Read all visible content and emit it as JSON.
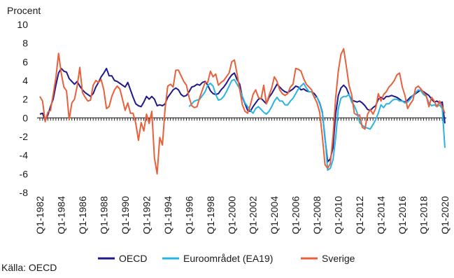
{
  "chart_data": {
    "type": "line",
    "y_label": "Procent",
    "source": "Källa: OECD",
    "categories": [
      "Q1-1982",
      null,
      null,
      null,
      null,
      null,
      null,
      null,
      "Q1-1984",
      null,
      null,
      null,
      null,
      null,
      null,
      null,
      "Q1-1986",
      null,
      null,
      null,
      null,
      null,
      null,
      null,
      "Q1-1988",
      null,
      null,
      null,
      null,
      null,
      null,
      null,
      "Q1-1990",
      null,
      null,
      null,
      null,
      null,
      null,
      null,
      "Q1-1992",
      null,
      null,
      null,
      null,
      null,
      null,
      null,
      "Q1-1994",
      null,
      null,
      null,
      null,
      null,
      null,
      null,
      "Q1-1996",
      null,
      null,
      null,
      null,
      null,
      null,
      null,
      "Q1-1998",
      null,
      null,
      null,
      null,
      null,
      null,
      null,
      "Q1-2000",
      null,
      null,
      null,
      null,
      null,
      null,
      null,
      "Q1-2002",
      null,
      null,
      null,
      null,
      null,
      null,
      null,
      "Q1-2004",
      null,
      null,
      null,
      null,
      null,
      null,
      null,
      "Q1-2006",
      null,
      null,
      null,
      null,
      null,
      null,
      null,
      "Q1-2008",
      null,
      null,
      null,
      null,
      null,
      null,
      null,
      "Q1-2010",
      null,
      null,
      null,
      null,
      null,
      null,
      null,
      "Q1-2012",
      null,
      null,
      null,
      null,
      null,
      null,
      null,
      "Q1-2014",
      null,
      null,
      null,
      null,
      null,
      null,
      null,
      "Q1-2016",
      null,
      null,
      null,
      null,
      null,
      null,
      null,
      "Q1-2018",
      null,
      null,
      null,
      null,
      null,
      null,
      null,
      "Q1-2020"
    ],
    "series": [
      {
        "name": "OECD",
        "color": "#1f1a8c",
        "values": [
          0.4,
          0.5,
          -0.3,
          0.3,
          1.2,
          2.0,
          3.5,
          4.8,
          5.3,
          5.0,
          4.9,
          4.2,
          3.9,
          3.6,
          3.9,
          3.4,
          3.0,
          2.7,
          2.5,
          2.3,
          2.6,
          3.3,
          3.8,
          4.4,
          4.8,
          5.3,
          4.5,
          4.5,
          4.0,
          3.9,
          3.7,
          3.5,
          3.3,
          3.8,
          3.0,
          2.2,
          1.5,
          1.3,
          1.2,
          1.7,
          2.3,
          2.0,
          2.3,
          2.0,
          1.3,
          1.4,
          1.3,
          1.5,
          2.2,
          2.6,
          3.0,
          3.2,
          3.0,
          2.5,
          2.3,
          2.4,
          2.8,
          3.3,
          3.4,
          3.6,
          3.5,
          3.8,
          3.9,
          3.5,
          2.9,
          2.6,
          2.5,
          2.6,
          3.0,
          3.3,
          3.7,
          4.2,
          4.6,
          4.8,
          4.1,
          3.6,
          2.2,
          1.5,
          0.8,
          0.7,
          1.2,
          1.6,
          2.0,
          2.1,
          1.8,
          1.5,
          2.2,
          2.6,
          3.1,
          3.6,
          3.3,
          3.0,
          2.8,
          2.7,
          2.9,
          3.1,
          3.4,
          3.3,
          3.0,
          3.1,
          2.9,
          2.8,
          2.8,
          2.6,
          2.2,
          1.6,
          0.6,
          -2.2,
          -4.7,
          -4.4,
          -3.2,
          0.4,
          2.4,
          3.2,
          3.5,
          3.2,
          2.5,
          1.9,
          1.8,
          1.7,
          1.8,
          1.6,
          1.3,
          0.9,
          0.8,
          1.1,
          1.3,
          2.0,
          2.2,
          2.0,
          2.3,
          2.3,
          2.4,
          2.3,
          2.2,
          2.0,
          1.8,
          1.7,
          1.9,
          2.2,
          2.4,
          2.6,
          2.8,
          3.0,
          2.8,
          2.6,
          2.4,
          2.0,
          1.7,
          1.8,
          1.6,
          1.7,
          -0.6
        ]
      },
      {
        "name": "Euroområdet (EA19)",
        "color": "#2ab4e2",
        "values": [
          null,
          null,
          null,
          null,
          null,
          null,
          null,
          null,
          null,
          null,
          null,
          null,
          null,
          null,
          null,
          null,
          null,
          null,
          null,
          null,
          null,
          null,
          null,
          null,
          null,
          null,
          null,
          null,
          null,
          null,
          null,
          null,
          null,
          null,
          null,
          null,
          null,
          null,
          null,
          null,
          null,
          null,
          null,
          null,
          null,
          null,
          null,
          null,
          null,
          null,
          null,
          null,
          null,
          null,
          null,
          null,
          1.2,
          1.5,
          1.8,
          1.9,
          2.0,
          2.4,
          2.8,
          3.5,
          3.7,
          3.4,
          2.5,
          1.9,
          2.0,
          2.3,
          2.8,
          3.4,
          4.0,
          4.1,
          3.6,
          3.1,
          2.3,
          1.6,
          1.2,
          0.8,
          0.5,
          1.0,
          1.2,
          0.9,
          0.6,
          0.4,
          0.7,
          1.2,
          1.8,
          2.2,
          1.8,
          1.8,
          1.4,
          1.4,
          1.8,
          2.1,
          2.6,
          3.1,
          3.4,
          3.7,
          3.2,
          2.8,
          2.8,
          2.2,
          2.2,
          1.5,
          0.5,
          -2.0,
          -5.6,
          -5.4,
          -4.5,
          -2.2,
          1.0,
          2.1,
          2.3,
          2.3,
          2.5,
          1.7,
          1.3,
          0.6,
          -0.5,
          -0.8,
          -1.0,
          -1.1,
          -1.2,
          -0.7,
          -0.2,
          0.5,
          1.4,
          1.1,
          1.5,
          1.5,
          1.8,
          2.0,
          2.0,
          1.8,
          1.8,
          1.6,
          1.7,
          2.0,
          2.4,
          2.7,
          3.0,
          2.9,
          2.5,
          2.3,
          1.6,
          1.3,
          1.4,
          1.2,
          1.4,
          1.0,
          -3.2
        ]
      },
      {
        "name": "Sverige",
        "color": "#e8603c",
        "values": [
          2.3,
          1.8,
          -0.4,
          0.6,
          0.8,
          2.5,
          4.3,
          6.9,
          4.8,
          3.3,
          2.9,
          -0.2,
          1.6,
          2.0,
          3.4,
          5.4,
          2.7,
          2.2,
          1.8,
          1.9,
          3.5,
          4.0,
          3.8,
          4.1,
          3.0,
          1.0,
          1.2,
          2.3,
          3.0,
          3.4,
          3.1,
          2.0,
          0.8,
          1.6,
          0.5,
          0.5,
          -0.6,
          -2.4,
          -0.5,
          -1.4,
          0.4,
          -0.6,
          0.7,
          -4.3,
          -6.0,
          -2.1,
          -2.9,
          1.0,
          3.4,
          3.6,
          3.3,
          5.1,
          5.1,
          4.5,
          3.9,
          3.5,
          2.2,
          1.3,
          1.1,
          1.2,
          2.2,
          3.0,
          3.8,
          3.8,
          5.0,
          4.4,
          4.7,
          3.5,
          3.8,
          4.0,
          4.4,
          4.8,
          6.0,
          6.2,
          4.7,
          3.0,
          1.4,
          0.7,
          0.5,
          1.4,
          2.5,
          3.0,
          2.2,
          2.0,
          3.5,
          1.5,
          2.4,
          3.2,
          4.4,
          3.9,
          3.0,
          2.6,
          2.4,
          2.6,
          3.3,
          3.6,
          5.3,
          5.2,
          5.0,
          4.2,
          3.6,
          3.3,
          3.0,
          2.2,
          1.6,
          0.6,
          -2.0,
          -5.0,
          -5.4,
          -4.9,
          -2.0,
          2.1,
          5.0,
          6.8,
          7.4,
          5.5,
          3.5,
          2.5,
          0.5,
          0.3,
          0.3,
          -1.0,
          -1.2,
          0.4,
          0.9,
          0.4,
          1.0,
          2.6,
          1.8,
          2.5,
          2.8,
          3.3,
          3.6,
          4.0,
          4.6,
          4.8,
          3.3,
          2.4,
          1.0,
          1.5,
          1.9,
          3.2,
          3.4,
          3.1,
          2.7,
          2.4,
          1.2,
          2.2,
          1.8,
          1.2,
          1.8,
          1.2,
          0.5
        ]
      }
    ],
    "ylim": [
      -8,
      10
    ],
    "yticks": [
      -8,
      -6,
      -4,
      -2,
      0,
      2,
      4,
      6,
      8,
      10
    ]
  }
}
